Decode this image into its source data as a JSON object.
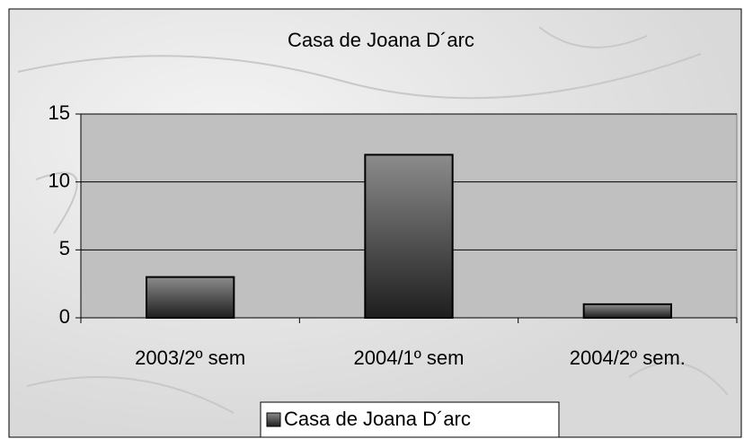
{
  "chart_data": {
    "type": "bar",
    "title": "Casa de Joana D´arc",
    "categories": [
      "2003/2º sem",
      "2004/1º sem",
      "2004/2º sem."
    ],
    "series": [
      {
        "name": "Casa de Joana D´arc",
        "color": "#8c8c8c",
        "values": [
          3,
          12,
          1
        ]
      }
    ],
    "ylim": [
      0,
      15
    ],
    "yticks": [
      0,
      5,
      10,
      15
    ],
    "grid": true,
    "legend": "bottom"
  }
}
